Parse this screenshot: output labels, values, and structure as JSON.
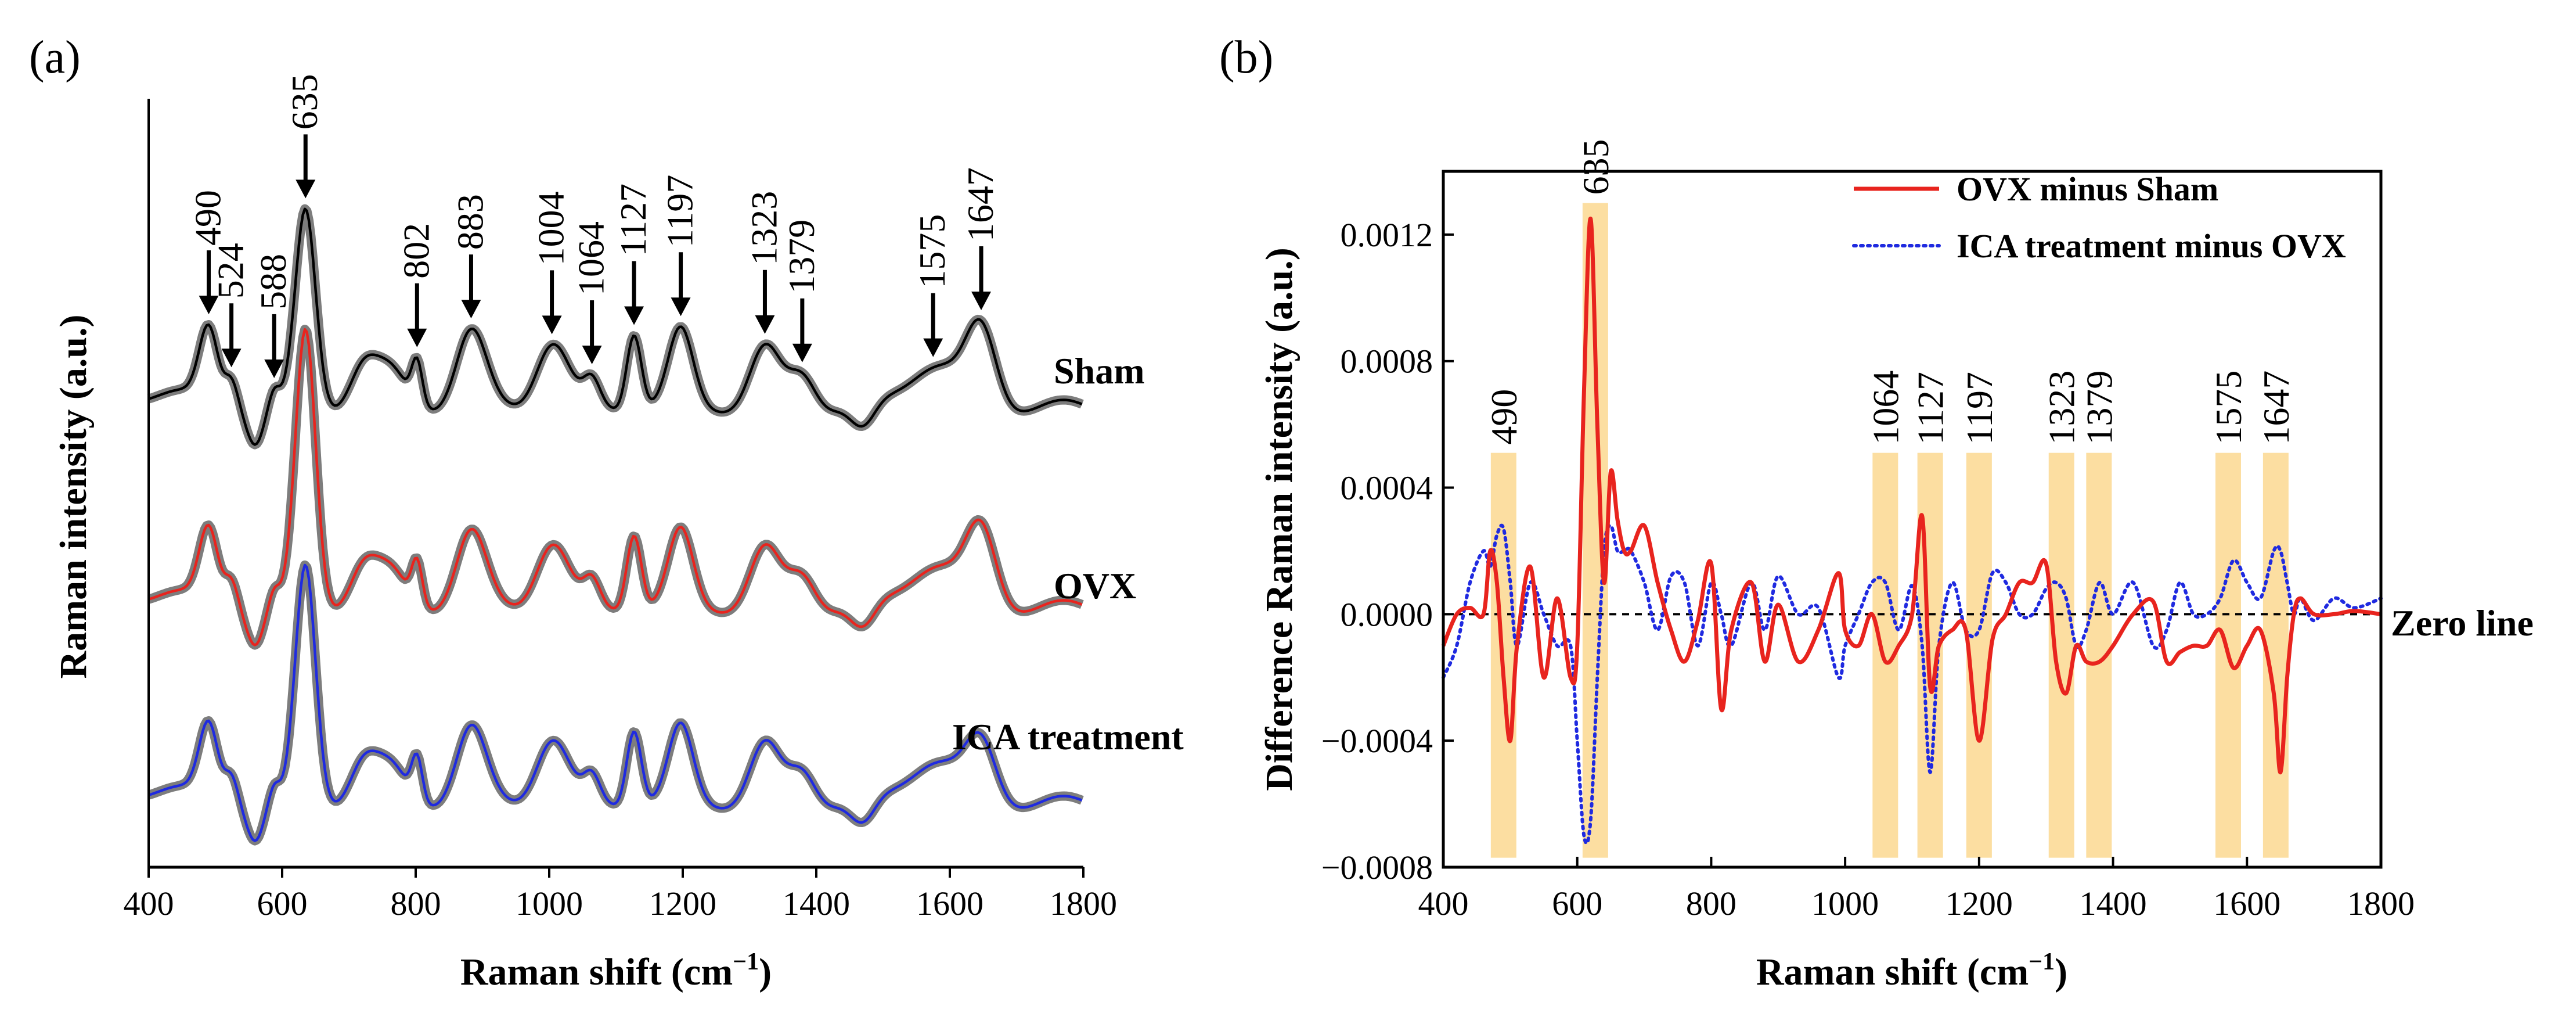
{
  "chart_data": [
    {
      "panel": "(a)",
      "type": "line",
      "xlabel": "Raman shift (cm",
      "xlabel_sup": "−1",
      "xlabel_close": ")",
      "ylabel": "Raman intensity (a.u.)",
      "xlim": [
        400,
        1800
      ],
      "xticks": [
        "400",
        "600",
        "800",
        "1000",
        "1200",
        "1400",
        "1600",
        "1800"
      ],
      "series": [
        {
          "name": "Sham",
          "color": "#000000",
          "label_color": "#000000"
        },
        {
          "name": "OVX",
          "color": "#e8241e",
          "label_color": "#e8241e"
        },
        {
          "name": "ICA treatment",
          "color": "#1f2ae0",
          "label_color": "#1f2ae0"
        }
      ],
      "peaks": [
        {
          "x": 490,
          "label": "490"
        },
        {
          "x": 524,
          "label": "524"
        },
        {
          "x": 588,
          "label": "588"
        },
        {
          "x": 635,
          "label": "635"
        },
        {
          "x": 802,
          "label": "802"
        },
        {
          "x": 883,
          "label": "883"
        },
        {
          "x": 1004,
          "label": "1004"
        },
        {
          "x": 1064,
          "label": "1064"
        },
        {
          "x": 1127,
          "label": "1127"
        },
        {
          "x": 1197,
          "label": "1197"
        },
        {
          "x": 1323,
          "label": "1323"
        },
        {
          "x": 1379,
          "label": "1379"
        },
        {
          "x": 1575,
          "label": "1575"
        },
        {
          "x": 1647,
          "label": "1647"
        }
      ]
    },
    {
      "panel": "(b)",
      "type": "line",
      "xlabel": "Raman shift (cm",
      "xlabel_sup": "−1",
      "xlabel_close": ")",
      "ylabel": "Difference Raman intensity (a.u.)",
      "xlim": [
        400,
        1800
      ],
      "ylim": [
        -0.0008,
        0.0014
      ],
      "xticks": [
        "400",
        "600",
        "800",
        "1000",
        "1200",
        "1400",
        "1600",
        "1800"
      ],
      "yticks": [
        "−0.0008",
        "−0.0004",
        "0.0000",
        "0.0004",
        "0.0008",
        "0.0012"
      ],
      "ytick_values": [
        -0.0008,
        -0.0004,
        0.0,
        0.0004,
        0.0008,
        0.0012
      ],
      "zero_line_label": "Zero line",
      "legend": [
        {
          "name": "OVX minus Sham",
          "color": "#e8241e",
          "style": "solid"
        },
        {
          "name": "ICA treatment minus OVX",
          "color": "#1f2ae0",
          "style": "dotted"
        }
      ],
      "highlight_bands": [
        {
          "center": 490,
          "label": "490"
        },
        {
          "center": 627,
          "label": "635"
        },
        {
          "center": 1060,
          "label": "1064"
        },
        {
          "center": 1127,
          "label": "1127"
        },
        {
          "center": 1200,
          "label": "1197"
        },
        {
          "center": 1323,
          "label": "1323"
        },
        {
          "center": 1379,
          "label": "1379"
        },
        {
          "center": 1572,
          "label": "1575"
        },
        {
          "center": 1643,
          "label": "1647"
        }
      ],
      "series": [
        {
          "name": "OVX minus Sham",
          "x": [
            400,
            420,
            440,
            460,
            470,
            480,
            490,
            500,
            510,
            530,
            550,
            570,
            590,
            600,
            610,
            620,
            630,
            640,
            650,
            660,
            670,
            680,
            700,
            720,
            740,
            760,
            780,
            800,
            815,
            830,
            860,
            880,
            900,
            930,
            960,
            990,
            1000,
            1020,
            1040,
            1060,
            1080,
            1100,
            1115,
            1127,
            1140,
            1160,
            1180,
            1200,
            1220,
            1240,
            1260,
            1280,
            1300,
            1315,
            1330,
            1345,
            1360,
            1380,
            1400,
            1430,
            1460,
            1480,
            1500,
            1520,
            1540,
            1560,
            1580,
            1600,
            1620,
            1640,
            1650,
            1660,
            1670,
            1680,
            1700,
            1730,
            1760,
            1800
          ],
          "y": [
            -0.0001,
            0.0,
            2e-05,
            0.0,
            0.0002,
            0.0001,
            -0.0002,
            -0.0004,
            -0.0001,
            0.00015,
            -0.0002,
            5e-05,
            -0.0002,
            -0.0001,
            0.0007,
            0.00125,
            0.0006,
            0.0001,
            0.00045,
            0.0003,
            0.0002,
            0.0002,
            0.00028,
            0.0001,
            -5e-05,
            -0.00015,
            -2e-05,
            0.00016,
            -0.0003,
            -5e-05,
            0.0001,
            -0.00015,
            3e-05,
            -0.00015,
            -5e-05,
            0.00013,
            -5e-05,
            -0.0001,
            0.0,
            -0.00015,
            -0.0001,
            0.0,
            0.00031,
            -0.00023,
            -0.0001,
            -5e-05,
            -5e-05,
            -0.0004,
            -8e-05,
            0.0,
            0.0001,
            0.0001,
            0.00016,
            -0.00015,
            -0.00025,
            -0.0001,
            -0.00015,
            -0.00015,
            -0.0001,
            0.0,
            4e-05,
            -0.00015,
            -0.00012,
            -0.0001,
            -0.0001,
            -5e-05,
            -0.00017,
            -0.0001,
            -5e-05,
            -0.00025,
            -0.0005,
            -0.0002,
            0.0,
            5e-05,
            0.0,
            0.0,
            1e-05,
            0.0
          ]
        },
        {
          "name": "ICA treatment minus OVX",
          "x": [
            400,
            420,
            440,
            460,
            470,
            480,
            490,
            500,
            510,
            530,
            550,
            570,
            590,
            600,
            610,
            620,
            630,
            640,
            650,
            660,
            670,
            680,
            700,
            720,
            740,
            760,
            780,
            800,
            815,
            830,
            860,
            880,
            900,
            930,
            960,
            990,
            1000,
            1020,
            1040,
            1060,
            1080,
            1100,
            1115,
            1127,
            1140,
            1160,
            1180,
            1200,
            1220,
            1240,
            1260,
            1280,
            1300,
            1315,
            1330,
            1345,
            1360,
            1380,
            1400,
            1430,
            1460,
            1480,
            1500,
            1520,
            1540,
            1560,
            1580,
            1600,
            1620,
            1640,
            1650,
            1660,
            1670,
            1680,
            1700,
            1730,
            1760,
            1800
          ],
          "y": [
            -0.0002,
            -0.0001,
            0.0001,
            0.0002,
            0.00015,
            0.00025,
            0.00027,
            0.0001,
            -0.0001,
            0.0001,
            0.0,
            -0.0001,
            -0.0001,
            -0.0004,
            -0.0007,
            -0.00065,
            -0.0002,
            0.0002,
            0.00028,
            0.0002,
            0.0002,
            0.0002,
            0.0001,
            -5e-05,
            0.00012,
            0.0001,
            -0.0001,
            0.0001,
            0.0,
            -0.0001,
            0.0001,
            -5e-05,
            0.00012,
            0.0,
            2e-05,
            -0.0002,
            -0.0001,
            0.0,
            0.0001,
            0.0001,
            -5e-05,
            9e-05,
            -0.0001,
            -0.0005,
            -0.0001,
            0.0001,
            -5e-05,
            -5e-05,
            0.00013,
            0.0001,
            0.0,
            0.0,
            8e-05,
            0.0001,
            5e-05,
            -0.0001,
            -5e-05,
            0.0001,
            0.0,
            0.0001,
            -0.0001,
            -5e-05,
            0.0001,
            0.0,
            0.0,
            5e-05,
            0.00017,
            0.0001,
            5e-05,
            0.0002,
            0.0002,
            0.0001,
            0.0,
            5e-05,
            -2e-05,
            5e-05,
            2e-05,
            5e-05
          ]
        }
      ]
    }
  ]
}
